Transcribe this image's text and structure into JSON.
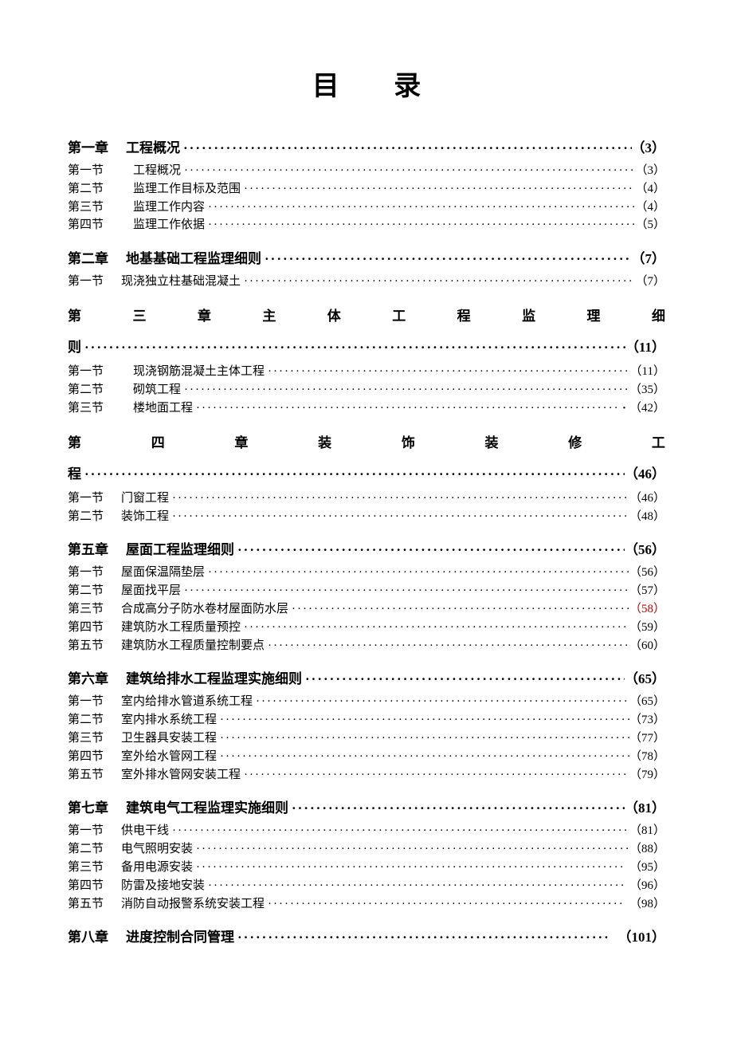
{
  "title": "目 录",
  "chapters": [
    {
      "label": "第一章",
      "title": "工程概况",
      "page": "（3）",
      "style": "normal",
      "first": true,
      "sections": [
        {
          "label": "第一节",
          "title": "工程概况",
          "page": "（3）",
          "indent": true
        },
        {
          "label": "第二节",
          "title": "监理工作目标及范围",
          "page": "（4）",
          "indent": true
        },
        {
          "label": "第三节",
          "title": "监理工作内容",
          "page": "（4）",
          "indent": true
        },
        {
          "label": "第四节",
          "title": "监理工作依据",
          "page": "（5）",
          "indent": true
        }
      ]
    },
    {
      "label": "第二章",
      "title": "地基基础工程监理细则",
      "page": "（7）",
      "style": "normal",
      "sections": [
        {
          "label": "第一节",
          "title": "现浇独立柱基础混凝土",
          "page": "（7）",
          "indent": false
        }
      ]
    },
    {
      "label": "第三章",
      "title": "主体工程监理细则",
      "page": "（11）",
      "style": "justified",
      "line1_chars": [
        "第",
        "三",
        "章",
        "主",
        "体",
        "工",
        "程",
        "监",
        "理",
        "细"
      ],
      "line2_prefix": "则",
      "sections": [
        {
          "label": "第一节",
          "title": "现浇钢筋混凝土主体工程",
          "page": "（11）",
          "indent": true
        },
        {
          "label": "第二节",
          "title": "砌筑工程",
          "page": "（35）",
          "indent": true
        },
        {
          "label": "第三节",
          "title": "楼地面工程",
          "page": "（42）",
          "indent": true,
          "extra_dot": true
        }
      ]
    },
    {
      "label": "第四章",
      "title": "装饰装修工程",
      "page": "（46）",
      "style": "justified",
      "line1_chars": [
        "第",
        "四",
        "章",
        "装",
        "饰",
        "装",
        "修",
        "工"
      ],
      "line2_prefix": "程",
      "sections": [
        {
          "label": "第一节",
          "title": "门窗工程",
          "page": "（46）",
          "indent": false
        },
        {
          "label": "第二节",
          "title": "装饰工程",
          "page": "（48）",
          "indent": false
        }
      ]
    },
    {
      "label": "第五章",
      "title": "屋面工程监理细则",
      "page": "（56）",
      "style": "normal",
      "sections": [
        {
          "label": "第一节",
          "title": "屋面保温隔垫层",
          "page": "（56）",
          "indent": false
        },
        {
          "label": "第二节",
          "title": "屋面找平层",
          "page": "（57）",
          "indent": false
        },
        {
          "label": "第三节",
          "title": "合成高分子防水卷材屋面防水层",
          "page": "（58）",
          "indent": false,
          "red": true
        },
        {
          "label": "第四节",
          "title": "建筑防水工程质量预控",
          "page": "（59）",
          "indent": false
        },
        {
          "label": "第五节",
          "title": "建筑防水工程质量控制要点",
          "page": "（60）",
          "indent": false
        }
      ]
    },
    {
      "label": "第六章",
      "title": "建筑给排水工程监理实施细则",
      "page": "（65）",
      "style": "normal",
      "sections": [
        {
          "label": "第一节",
          "title": "室内给排水管道系统工程",
          "page": "（65）",
          "indent": false
        },
        {
          "label": "第二节",
          "title": "室内排水系统工程",
          "page": "（73）",
          "indent": false
        },
        {
          "label": "第三节",
          "title": "卫生器具安装工程",
          "page": "（77）",
          "indent": false
        },
        {
          "label": "第四节",
          "title": "室外给水管网工程",
          "page": "（78）",
          "indent": false
        },
        {
          "label": "第五节",
          "title": "室外排水管网安装工程",
          "page": "（79）",
          "indent": false
        }
      ]
    },
    {
      "label": "第七章",
      "title": "建筑电气工程监理实施细则",
      "page": "（81）",
      "style": "normal",
      "sections": [
        {
          "label": "第一节",
          "title": "供电干线",
          "page": "（81）",
          "indent": false
        },
        {
          "label": "第二节",
          "title": "电气照明安装",
          "page": "（88）",
          "indent": false
        },
        {
          "label": "第三节",
          "title": "备用电源安装",
          "page": "（95）",
          "indent": false,
          "space_page": true
        },
        {
          "label": "第四节",
          "title": "防雷及接地安装",
          "page": "（96）",
          "indent": false,
          "space_page": true
        },
        {
          "label": "第五节",
          "title": "消防自动报警系统安装工程",
          "page": "（98）",
          "indent": false,
          "space_page": true
        }
      ]
    },
    {
      "label": "第八章",
      "title": "进度控制合同管理",
      "page": "（101）",
      "style": "normal",
      "space_page": true,
      "sections": []
    }
  ],
  "dot_char": "·",
  "colors": {
    "text": "#000000",
    "red": "#c00000",
    "background": "#ffffff"
  },
  "fonts": {
    "title_size": 34,
    "chapter_size": 17,
    "section_size": 15
  }
}
